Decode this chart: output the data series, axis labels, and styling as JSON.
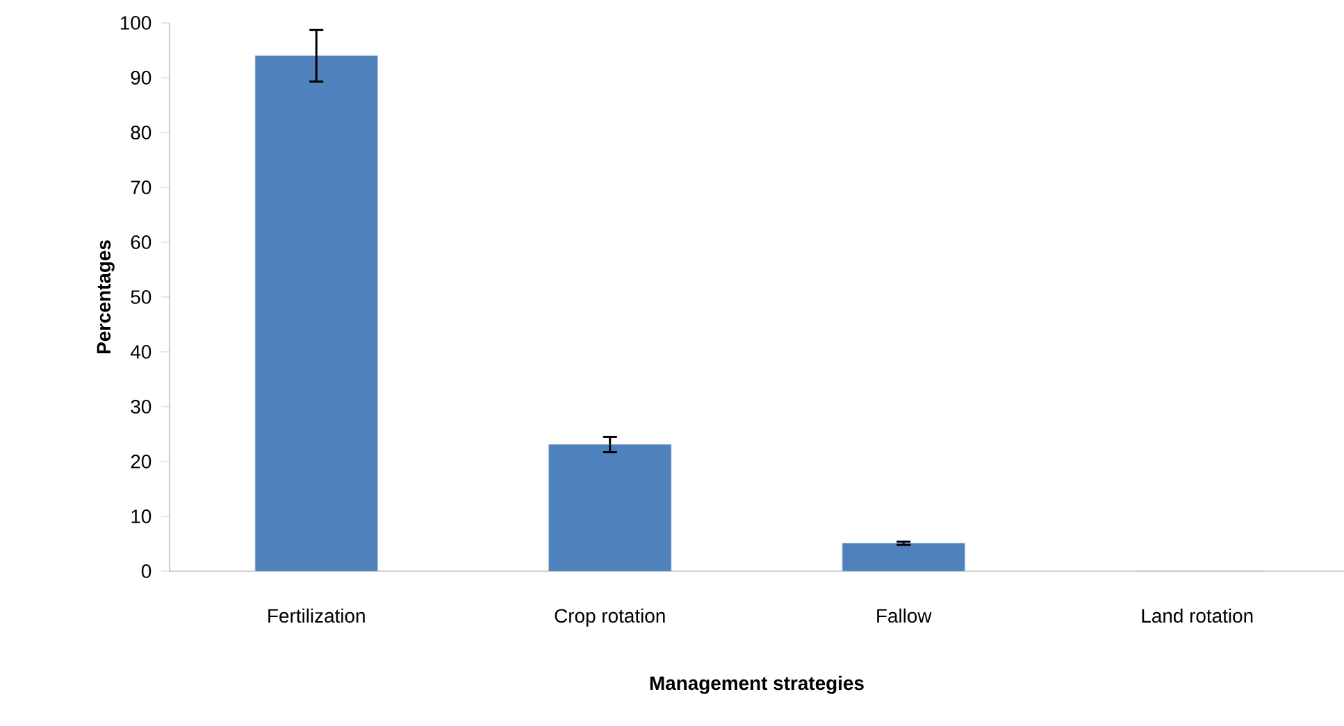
{
  "chart_data": {
    "type": "bar",
    "xlabel": "Management strategies",
    "ylabel": "Percentages",
    "categories": [
      "Fertilization",
      "Crop rotation",
      "Fallow",
      "Land rotation"
    ],
    "values": [
      94,
      23.1,
      5.1,
      0
    ],
    "errors": [
      4.7,
      1.4,
      0.3,
      null
    ],
    "color": "#4f81bd",
    "ylim": [
      0,
      100
    ],
    "yticks": [
      0,
      10,
      20,
      30,
      40,
      50,
      60,
      70,
      80,
      90,
      100
    ],
    "grid": false
  }
}
